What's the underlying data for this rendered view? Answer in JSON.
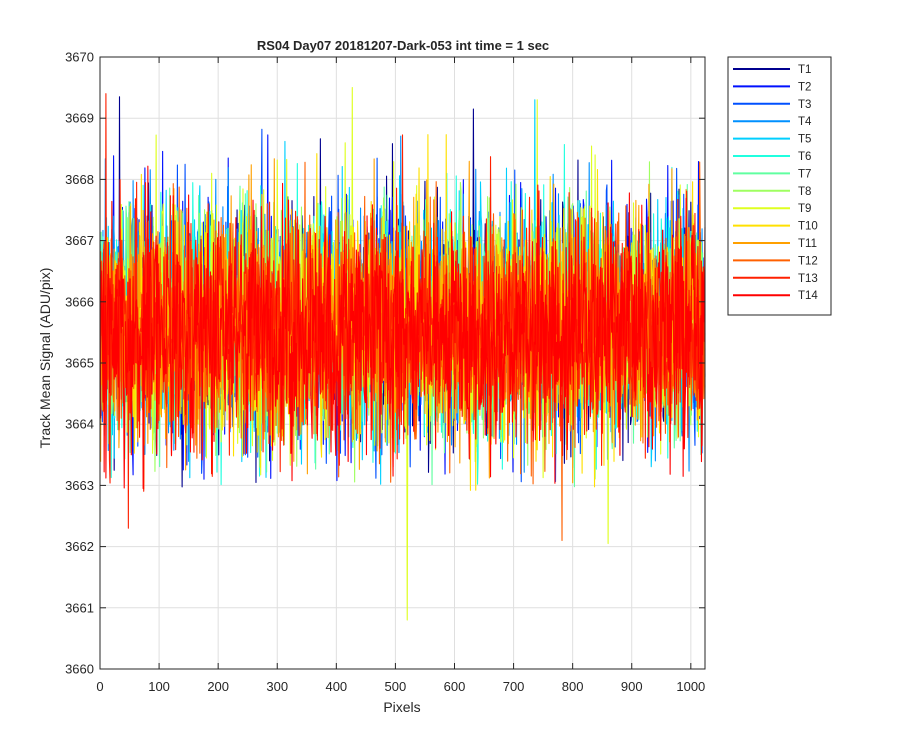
{
  "chart_data": {
    "type": "line",
    "title": "RS04 Day07 20181207-Dark-053 int time = 1 sec",
    "xlabel": "Pixels",
    "ylabel": "Track Mean Signal (ADU/pix)",
    "xlim": [
      0,
      1024
    ],
    "ylim": [
      3660,
      3670
    ],
    "x_ticks": [
      0,
      100,
      200,
      300,
      400,
      500,
      600,
      700,
      800,
      900,
      1000
    ],
    "y_ticks": [
      3660,
      3661,
      3662,
      3663,
      3664,
      3665,
      3666,
      3667,
      3668,
      3669,
      3670
    ],
    "grid": true,
    "legend_position": "outside-top-right",
    "x": {
      "start": 1,
      "end": 1024,
      "step": 1
    },
    "noise_model": {
      "mean": 3665.6,
      "std": 0.9,
      "min": 3662.0,
      "max": 3669.3
    },
    "series": [
      {
        "name": "T1",
        "color": "#00008f",
        "mean": 3665.7
      },
      {
        "name": "T2",
        "color": "#0010ff",
        "mean": 3665.7
      },
      {
        "name": "T3",
        "color": "#0050ff",
        "mean": 3665.65
      },
      {
        "name": "T4",
        "color": "#0090ff",
        "mean": 3665.65
      },
      {
        "name": "T5",
        "color": "#00cfff",
        "mean": 3665.6
      },
      {
        "name": "T6",
        "color": "#20ffdf",
        "mean": 3665.6
      },
      {
        "name": "T7",
        "color": "#60ffa0",
        "mean": 3665.6
      },
      {
        "name": "T8",
        "color": "#9fff60",
        "mean": 3665.6
      },
      {
        "name": "T9",
        "color": "#dfff20",
        "mean": 3665.6
      },
      {
        "name": "T10",
        "color": "#ffe000",
        "mean": 3665.6
      },
      {
        "name": "T11",
        "color": "#ffa000",
        "mean": 3665.55
      },
      {
        "name": "T12",
        "color": "#ff6000",
        "mean": 3665.55
      },
      {
        "name": "T13",
        "color": "#ff2000",
        "mean": 3665.5
      },
      {
        "name": "T14",
        "color": "#ff0000",
        "mean": 3665.5
      }
    ],
    "notable_values": [
      {
        "series": "T9",
        "x": 520,
        "y": 3660.8
      },
      {
        "series": "T9",
        "x": 427,
        "y": 3669.5
      },
      {
        "series": "T13",
        "x": 10,
        "y": 3669.4
      },
      {
        "series": "T1",
        "x": 33,
        "y": 3669.35
      },
      {
        "series": "T1",
        "x": 632,
        "y": 3669.15
      },
      {
        "series": "T9",
        "x": 740,
        "y": 3669.3
      },
      {
        "series": "T12",
        "x": 782,
        "y": 3662.1
      },
      {
        "series": "T9",
        "x": 860,
        "y": 3662.05
      },
      {
        "series": "T13",
        "x": 48,
        "y": 3662.3
      }
    ]
  }
}
